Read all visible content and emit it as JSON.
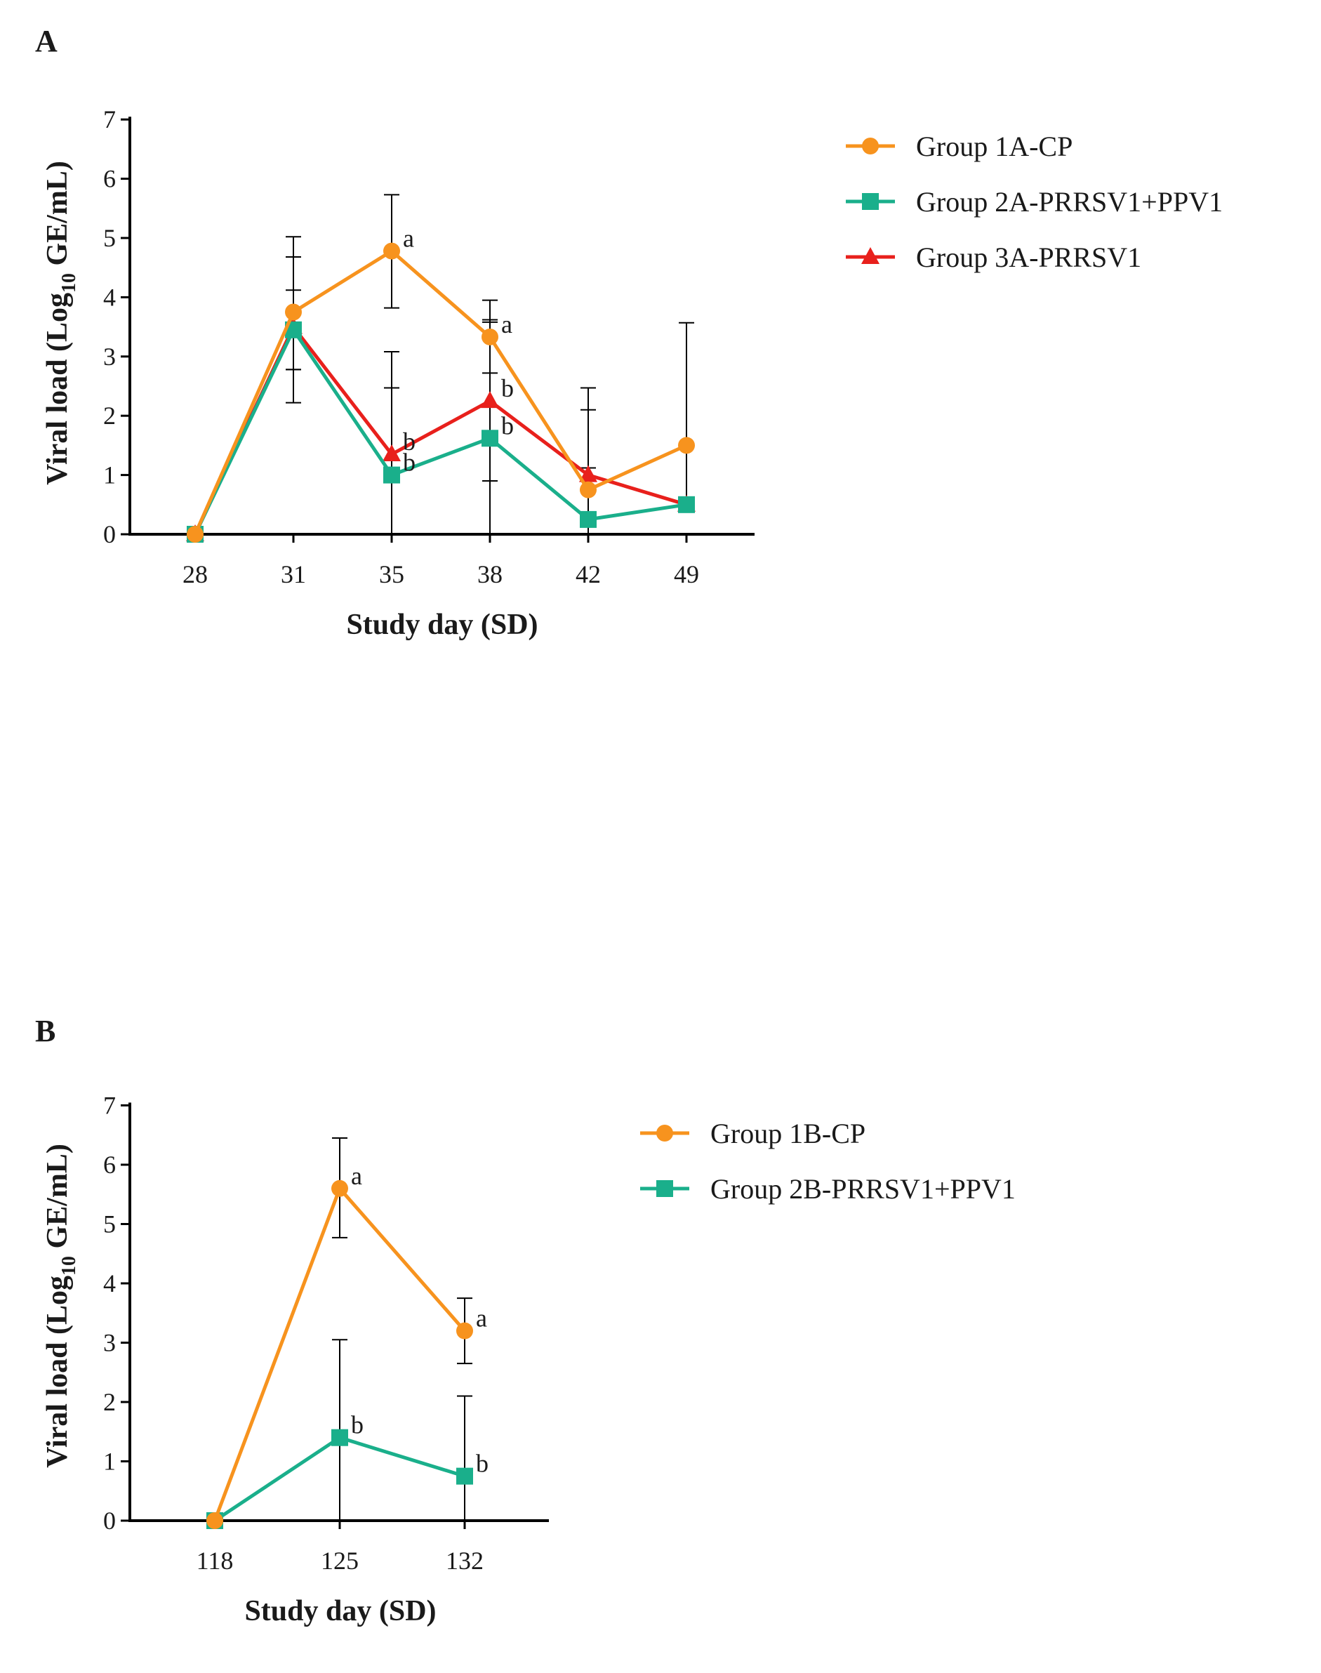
{
  "chart_data": [
    {
      "type": "line",
      "panel_label": "A",
      "xlabel": "Study day (SD)",
      "ylabel": {
        "pre": "Viral load (Log",
        "sub": "10",
        "post": " GE/mL)"
      },
      "categories": [
        "28",
        "31",
        "35",
        "38",
        "42",
        "49"
      ],
      "ylim": [
        0,
        7
      ],
      "yticks": [
        "0",
        "1",
        "2",
        "3",
        "4",
        "5",
        "6",
        "7"
      ],
      "legend_position": "right",
      "series": [
        {
          "name": "Group 1A-CP",
          "color": "#f7931e",
          "marker": "circle",
          "values": [
            0,
            3.75,
            4.78,
            3.33,
            0.75,
            1.5
          ],
          "err_high": [
            null,
            4.68,
            5.73,
            3.95,
            2.47,
            3.57
          ],
          "err_low": [
            null,
            2.78,
            3.82,
            2.72,
            null,
            0.48
          ],
          "sig": [
            null,
            null,
            "a",
            "a",
            null,
            null
          ]
        },
        {
          "name": "Group 2A-PRRSV1+PPV1",
          "color": "#1aaf8b",
          "marker": "square",
          "values": [
            0,
            3.45,
            1.0,
            1.62,
            0.25,
            0.5
          ],
          "err_high": [
            null,
            4.12,
            2.47,
            3.62,
            1.12,
            0.5
          ],
          "err_low": [
            null,
            2.78,
            0,
            0,
            0,
            0.5
          ],
          "sig": [
            null,
            null,
            "b",
            "b",
            null,
            null
          ]
        },
        {
          "name": "Group 3A-PRRSV1",
          "color": "#e8201c",
          "marker": "triangle",
          "values": [
            0,
            3.5,
            1.35,
            2.25,
            1.0,
            0.5
          ],
          "err_high": [
            null,
            5.02,
            3.08,
            3.58,
            2.1,
            0.5
          ],
          "err_low": [
            null,
            2.22,
            0,
            0.9,
            0,
            0.5
          ],
          "sig": [
            null,
            null,
            "b",
            "b",
            null,
            null
          ]
        }
      ]
    },
    {
      "type": "line",
      "panel_label": "B",
      "xlabel": "Study day (SD)",
      "ylabel": {
        "pre": "Viral load (Log",
        "sub": "10",
        "post": " GE/mL)"
      },
      "categories": [
        "118",
        "125",
        "132"
      ],
      "ylim": [
        0,
        7
      ],
      "yticks": [
        "0",
        "1",
        "2",
        "3",
        "4",
        "5",
        "6",
        "7"
      ],
      "legend_position": "right",
      "series": [
        {
          "name": "Group 1B-CP",
          "color": "#f7931e",
          "marker": "circle",
          "values": [
            0,
            5.6,
            3.2
          ],
          "err_high": [
            null,
            6.45,
            3.75
          ],
          "err_low": [
            null,
            4.77,
            2.65
          ],
          "sig": [
            null,
            "a",
            "a"
          ]
        },
        {
          "name": "Group 2B-PRRSV1+PPV1",
          "color": "#1aaf8b",
          "marker": "square",
          "values": [
            0,
            1.4,
            0.75
          ],
          "err_high": [
            null,
            3.05,
            2.1
          ],
          "err_low": [
            null,
            0,
            0
          ],
          "sig": [
            null,
            "b",
            "b"
          ]
        }
      ]
    }
  ]
}
